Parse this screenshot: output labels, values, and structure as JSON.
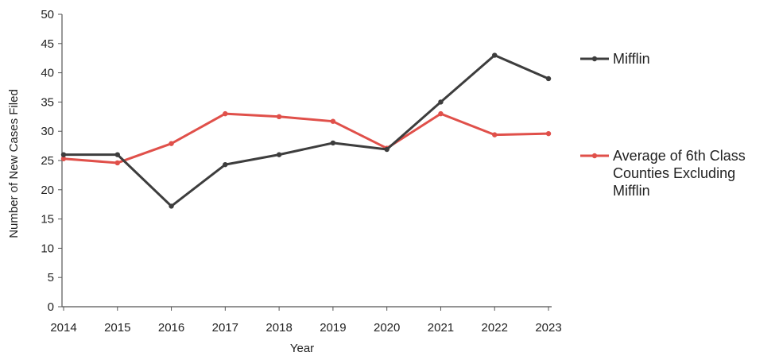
{
  "chart_data": {
    "type": "line",
    "title": "",
    "xlabel": "Year",
    "ylabel": "Number of New Cases Filed",
    "categories": [
      "2014",
      "2015",
      "2016",
      "2017",
      "2018",
      "2019",
      "2020",
      "2021",
      "2022",
      "2023"
    ],
    "ylim": [
      0,
      50
    ],
    "yticks": [
      0,
      5,
      10,
      15,
      20,
      25,
      30,
      35,
      40,
      45,
      50
    ],
    "grid": false,
    "legend_position": "right",
    "series": [
      {
        "name": "Mifflin",
        "color": "#3d3d3d",
        "values": [
          26,
          26,
          17.2,
          24.3,
          26,
          28,
          26.9,
          35,
          43,
          39
        ]
      },
      {
        "name": "Average of 6th Class Counties Excluding Mifflin",
        "legend_lines": [
          "Average of 6th Class",
          "Counties Excluding",
          "Mifflin"
        ],
        "color": "#e0504a",
        "values": [
          25.3,
          24.6,
          27.9,
          33,
          32.5,
          31.7,
          27.1,
          33,
          29.4,
          29.6
        ]
      }
    ]
  }
}
